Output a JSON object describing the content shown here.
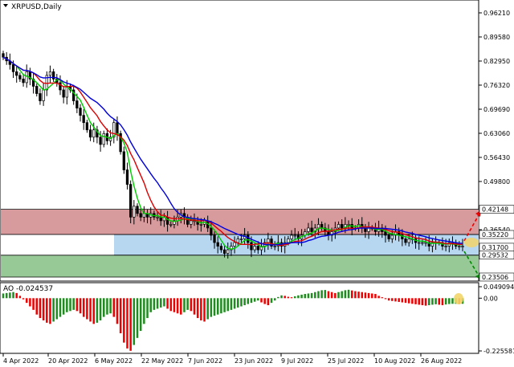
{
  "window": {
    "title": "XRPUSD,Daily",
    "ao_title": "AO -0.024537"
  },
  "colors": {
    "bull_candle": "#ffffff",
    "bear_candle": "#000000",
    "ma_fast": "#00cc00",
    "ma_mid": "#dd0000",
    "ma_slow": "#0000dd",
    "resistance_zone": "#d79b9e",
    "pivot_zone": "#b7d7f0",
    "support_zone": "#96c996",
    "ao_up": "#1e8c1e",
    "ao_down": "#ee0000",
    "arrow_up": "#ee0000",
    "arrow_down": "#008800",
    "highlight": "#f3d56a"
  },
  "chart_data": [
    {
      "type": "candlestick",
      "title": "XRPUSD,Daily",
      "ylim": [
        0.22,
        0.97
      ],
      "y_ticks": [
        "0.96210",
        "0.89580",
        "0.82950",
        "0.76320",
        "0.69690",
        "0.63060",
        "0.56430",
        "0.49800",
        "0.36540",
        "0.29910",
        "0.23280"
      ],
      "x_ticks": [
        "4 Apr 2022",
        "20 Apr 2022",
        "6 May 2022",
        "22 May 2022",
        "7 Jun 2022",
        "23 Jun 2022",
        "9 Jul 2022",
        "25 Jul 2022",
        "10 Aug 2022",
        "26 Aug 2022"
      ],
      "price_labels": [
        "0.42148",
        "0.35220",
        "0.31700",
        "0.29532",
        "0.23506"
      ],
      "zones": [
        {
          "name": "resistance",
          "from": 0.3522,
          "to": 0.42148
        },
        {
          "name": "pivot",
          "from": 0.2953,
          "to": 0.3522
        },
        {
          "name": "support",
          "from": 0.23506,
          "to": 0.2953
        }
      ],
      "close": [
        0.84,
        0.83,
        0.82,
        0.8,
        0.79,
        0.78,
        0.77,
        0.8,
        0.78,
        0.76,
        0.74,
        0.72,
        0.75,
        0.79,
        0.8,
        0.78,
        0.77,
        0.75,
        0.73,
        0.76,
        0.75,
        0.72,
        0.7,
        0.68,
        0.66,
        0.64,
        0.62,
        0.64,
        0.62,
        0.6,
        0.63,
        0.61,
        0.62,
        0.66,
        0.63,
        0.58,
        0.53,
        0.49,
        0.4,
        0.43,
        0.41,
        0.4,
        0.41,
        0.4,
        0.41,
        0.4,
        0.4,
        0.39,
        0.4,
        0.38,
        0.38,
        0.39,
        0.4,
        0.41,
        0.4,
        0.38,
        0.39,
        0.39,
        0.38,
        0.38,
        0.39,
        0.37,
        0.35,
        0.33,
        0.32,
        0.31,
        0.3,
        0.31,
        0.32,
        0.33,
        0.34,
        0.34,
        0.35,
        0.33,
        0.31,
        0.32,
        0.31,
        0.32,
        0.33,
        0.34,
        0.32,
        0.32,
        0.33,
        0.32,
        0.33,
        0.34,
        0.35,
        0.35,
        0.34,
        0.35,
        0.36,
        0.37,
        0.36,
        0.37,
        0.38,
        0.37,
        0.36,
        0.35,
        0.36,
        0.37,
        0.38,
        0.37,
        0.38,
        0.38,
        0.37,
        0.37,
        0.38,
        0.37,
        0.36,
        0.37,
        0.37,
        0.36,
        0.37,
        0.36,
        0.35,
        0.34,
        0.35,
        0.36,
        0.35,
        0.34,
        0.33,
        0.34,
        0.34,
        0.33,
        0.33,
        0.33,
        0.33,
        0.32,
        0.33,
        0.33,
        0.33,
        0.32,
        0.32,
        0.33,
        0.33,
        0.32,
        0.32,
        0.32
      ],
      "ao_values": [
        0.02,
        0.022,
        0.024,
        0.026,
        0.022,
        0.01,
        -0.005,
        -0.02,
        -0.035,
        -0.05,
        -0.07,
        -0.085,
        -0.095,
        -0.105,
        -0.11,
        -0.1,
        -0.09,
        -0.08,
        -0.07,
        -0.06,
        -0.055,
        -0.05,
        -0.055,
        -0.065,
        -0.08,
        -0.09,
        -0.1,
        -0.11,
        -0.105,
        -0.095,
        -0.08,
        -0.07,
        -0.065,
        -0.08,
        -0.11,
        -0.15,
        -0.19,
        -0.215,
        -0.225,
        -0.2,
        -0.17,
        -0.14,
        -0.11,
        -0.085,
        -0.06,
        -0.05,
        -0.045,
        -0.04,
        -0.035,
        -0.045,
        -0.055,
        -0.06,
        -0.065,
        -0.07,
        -0.06,
        -0.05,
        -0.055,
        -0.07,
        -0.085,
        -0.095,
        -0.1,
        -0.09,
        -0.08,
        -0.075,
        -0.07,
        -0.065,
        -0.06,
        -0.055,
        -0.05,
        -0.045,
        -0.04,
        -0.035,
        -0.03,
        -0.025,
        -0.02,
        -0.015,
        -0.01,
        -0.018,
        -0.025,
        -0.03,
        -0.02,
        -0.01,
        0.005,
        0.012,
        0.01,
        0.006,
        0.004,
        0.008,
        0.012,
        0.015,
        0.018,
        0.02,
        0.022,
        0.026,
        0.03,
        0.034,
        0.035,
        0.03,
        0.026,
        0.022,
        0.026,
        0.03,
        0.034,
        0.036,
        0.033,
        0.03,
        0.028,
        0.026,
        0.024,
        0.022,
        0.02,
        0.018,
        0.01,
        0.004,
        -0.004,
        -0.01,
        -0.012,
        -0.014,
        -0.016,
        -0.018,
        -0.02,
        -0.022,
        -0.024,
        -0.026,
        -0.028,
        -0.03,
        -0.032,
        -0.03,
        -0.028,
        -0.026,
        -0.028,
        -0.03,
        -0.027,
        -0.025,
        -0.024,
        -0.024,
        -0.025,
        -0.024
      ],
      "ao_ylim": [
        -0.2256,
        0.0491
      ],
      "ao_ticks": [
        "0.049094",
        "0.00",
        "-0.225581"
      ]
    }
  ]
}
